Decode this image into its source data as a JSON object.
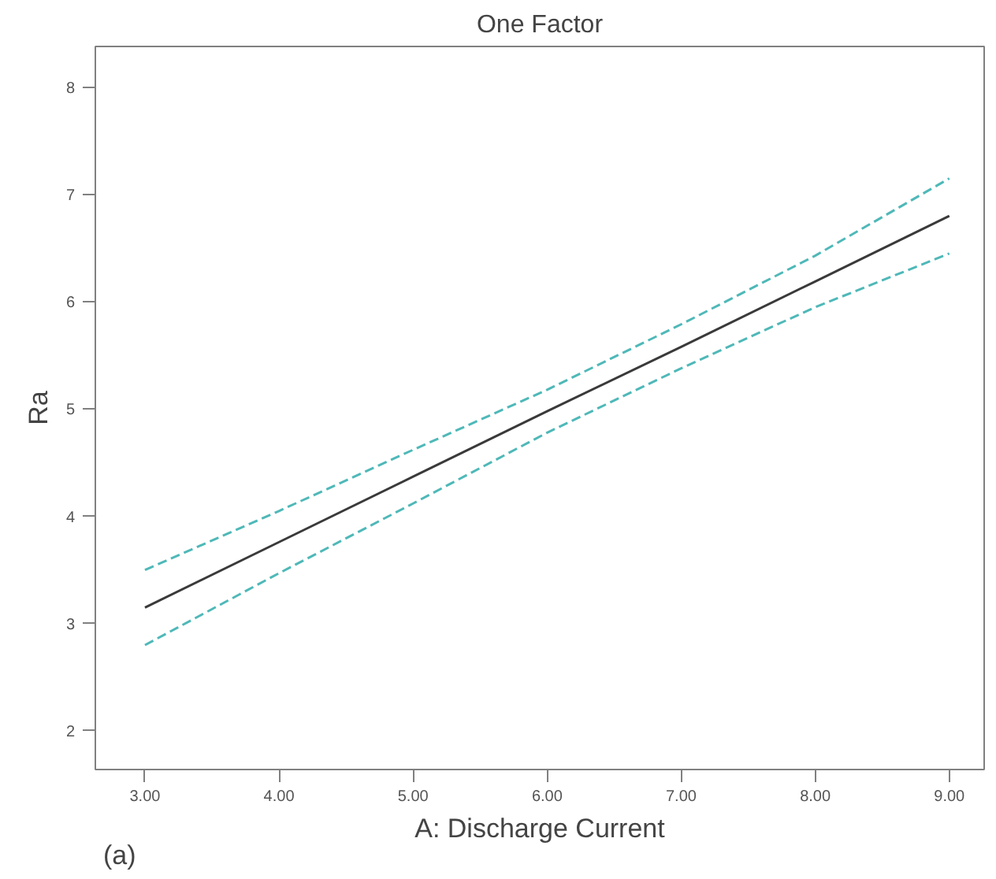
{
  "chart_data": {
    "type": "line",
    "title": "One Factor",
    "xlabel": "A: Discharge Current",
    "ylabel": "Ra",
    "annotations": [
      "(a)"
    ],
    "x": [
      3,
      4,
      5,
      6,
      7,
      8,
      9
    ],
    "series": [
      {
        "color": "#3a3a3a",
        "line_style": "solid",
        "values": [
          3.15,
          3.76,
          4.37,
          4.98,
          5.58,
          6.19,
          6.8
        ]
      },
      {
        "color": "#4fb8b8",
        "line_style": "dashed",
        "values": [
          3.5,
          4.05,
          4.62,
          5.18,
          5.79,
          6.43,
          7.15
        ]
      },
      {
        "color": "#4fb8b8",
        "line_style": "dashed",
        "values": [
          2.8,
          3.47,
          4.12,
          4.78,
          5.38,
          5.95,
          6.45
        ]
      }
    ],
    "xlim": [
      2.63,
      9.26
    ],
    "ylim": [
      1.64,
      8.38
    ],
    "xticks": [
      {
        "value": 3,
        "label": "3.00"
      },
      {
        "value": 4,
        "label": "4.00"
      },
      {
        "value": 5,
        "label": "5.00"
      },
      {
        "value": 6,
        "label": "6.00"
      },
      {
        "value": 7,
        "label": "7.00"
      },
      {
        "value": 8,
        "label": "8.00"
      },
      {
        "value": 9,
        "label": "9.00"
      }
    ],
    "yticks": [
      2,
      3,
      4,
      5,
      6,
      7,
      8
    ],
    "grid": false,
    "marker": "none"
  }
}
